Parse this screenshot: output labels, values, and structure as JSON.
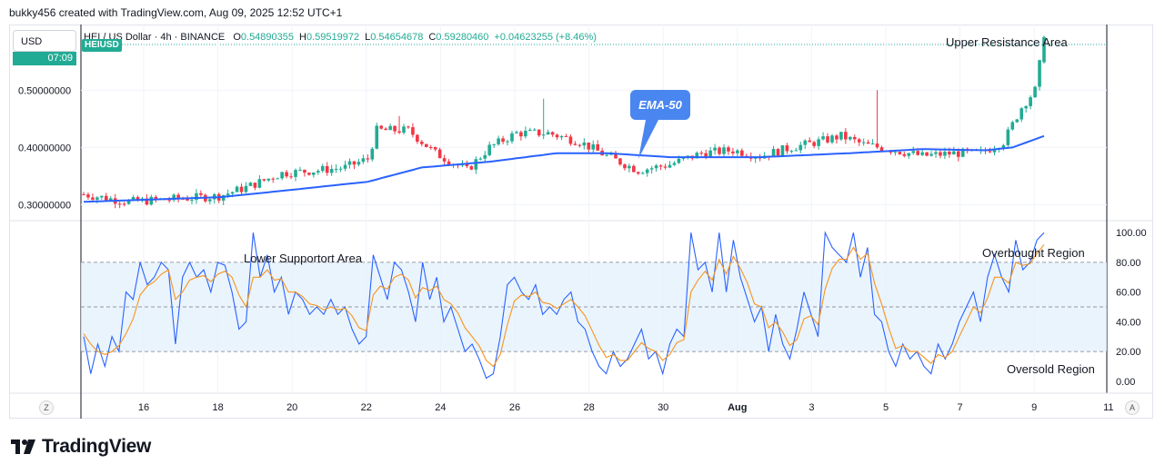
{
  "header": {
    "credit": "bukky456 created with TradingView.com, Aug 09, 2025 12:52 UTC+1",
    "currency": "USD",
    "symbol_badge": "HEIUSD",
    "time_badge": "07:09",
    "symbol_line": "HEI / US Dollar · 4h · BINANCE",
    "ohlc": [
      {
        "k": "O",
        "v": "0.54890355"
      },
      {
        "k": "H",
        "v": "0.59519972"
      },
      {
        "k": "L",
        "v": "0.54654678"
      },
      {
        "k": "C",
        "v": "0.59280460"
      },
      {
        "k": "",
        "v": "+0.04623255 (+8.46%)"
      }
    ]
  },
  "footer": {
    "logo": "TradingView",
    "left_button": "Z",
    "right_button": "A"
  },
  "colors": {
    "up": "#22ab94",
    "down": "#f23645",
    "ema": "#2962ff",
    "rsi": "#2962ff",
    "rsi_ma": "#f7941d",
    "band": "#e3f0fc"
  },
  "chart_data": [
    {
      "type": "candlestick",
      "title": "HEI / US Dollar · 4h · BINANCE",
      "ylim": [
        0.28,
        0.61
      ],
      "ytick_labels": [
        "0.30000000",
        "0.40000000",
        "0.50000000"
      ],
      "x": [
        "16",
        "18",
        "20",
        "22",
        "24",
        "26",
        "28",
        "30",
        "Aug",
        "3",
        "5",
        "7",
        "9",
        "11"
      ],
      "ohlc_approx": {
        "open": 0.5489,
        "high": 0.5952,
        "low": 0.5465,
        "close": 0.5928,
        "anchor_closes": [
          [
            0,
            0.318
          ],
          [
            10,
            0.305
          ],
          [
            20,
            0.31
          ],
          [
            30,
            0.315
          ],
          [
            36,
            0.33
          ],
          [
            44,
            0.355
          ],
          [
            52,
            0.36
          ],
          [
            58,
            0.365
          ],
          [
            63,
            0.38
          ],
          [
            65,
            0.43
          ],
          [
            72,
            0.43
          ],
          [
            78,
            0.39
          ],
          [
            85,
            0.36
          ],
          [
            90,
            0.4
          ],
          [
            96,
            0.425
          ],
          [
            103,
            0.425
          ],
          [
            110,
            0.41
          ],
          [
            116,
            0.385
          ],
          [
            123,
            0.36
          ],
          [
            130,
            0.37
          ],
          [
            137,
            0.39
          ],
          [
            144,
            0.395
          ],
          [
            150,
            0.385
          ],
          [
            157,
            0.4
          ],
          [
            163,
            0.41
          ],
          [
            168,
            0.42
          ],
          [
            173,
            0.405
          ],
          [
            180,
            0.395
          ],
          [
            186,
            0.385
          ],
          [
            193,
            0.39
          ],
          [
            199,
            0.39
          ],
          [
            204,
            0.41
          ],
          [
            208,
            0.47
          ],
          [
            211,
            0.5
          ],
          [
            212,
            0.545
          ],
          [
            213,
            0.593
          ]
        ]
      },
      "ema_50": {
        "label": "EMA-50",
        "anchors": [
          [
            0,
            0.305
          ],
          [
            30,
            0.313
          ],
          [
            45,
            0.325
          ],
          [
            63,
            0.34
          ],
          [
            75,
            0.365
          ],
          [
            90,
            0.375
          ],
          [
            105,
            0.39
          ],
          [
            116,
            0.39
          ],
          [
            130,
            0.383
          ],
          [
            150,
            0.383
          ],
          [
            170,
            0.39
          ],
          [
            186,
            0.397
          ],
          [
            200,
            0.395
          ],
          [
            206,
            0.4
          ],
          [
            213,
            0.42
          ]
        ]
      },
      "annotations": [
        {
          "text": "Upper Resistance Area"
        },
        {
          "text": "EMA-50"
        }
      ]
    },
    {
      "type": "line",
      "ylim": [
        -5,
        105
      ],
      "ytick_labels": [
        "0.00",
        "20.00",
        "40.00",
        "60.00",
        "80.00",
        "100.00"
      ],
      "band": [
        20,
        80
      ],
      "series": [
        {
          "values": [
            30,
            5,
            25,
            10,
            30,
            20,
            60,
            55,
            80,
            65,
            70,
            80,
            75,
            25,
            70,
            80,
            70,
            75,
            60,
            80,
            78,
            60,
            35,
            40,
            100,
            70,
            85,
            60,
            70,
            45,
            60,
            55,
            45,
            50,
            45,
            55,
            45,
            50,
            35,
            25,
            30,
            85,
            70,
            55,
            80,
            75,
            60,
            40,
            80,
            55,
            70,
            40,
            50,
            35,
            20,
            25,
            15,
            2,
            5,
            30,
            65,
            70,
            60,
            55,
            65,
            45,
            50,
            45,
            55,
            60,
            40,
            35,
            20,
            10,
            5,
            20,
            10,
            15,
            25,
            35,
            15,
            20,
            5,
            25,
            35,
            30,
            100,
            75,
            80,
            60,
            100,
            60,
            95,
            70,
            55,
            40,
            50,
            20,
            45,
            25,
            15,
            35,
            60,
            45,
            30,
            100,
            90,
            85,
            80,
            100,
            70,
            90,
            45,
            40,
            20,
            10,
            25,
            15,
            20,
            10,
            5,
            25,
            15,
            25,
            40,
            50,
            60,
            40,
            70,
            85,
            70,
            60,
            95,
            75,
            80,
            95,
            100
          ]
        },
        {
          "values": [
            32,
            25,
            20,
            18,
            20,
            24,
            32,
            42,
            58,
            64,
            67,
            72,
            75,
            55,
            60,
            68,
            70,
            71,
            67,
            72,
            74,
            70,
            58,
            50,
            70,
            70,
            75,
            68,
            69,
            60,
            60,
            57,
            52,
            51,
            48,
            50,
            48,
            49,
            44,
            36,
            34,
            58,
            64,
            62,
            70,
            72,
            68,
            56,
            63,
            61,
            64,
            55,
            52,
            46,
            36,
            30,
            24,
            14,
            10,
            18,
            38,
            54,
            58,
            57,
            60,
            53,
            52,
            49,
            52,
            55,
            50,
            44,
            34,
            24,
            16,
            18,
            14,
            14,
            20,
            26,
            22,
            20,
            14,
            18,
            26,
            28,
            60,
            68,
            74,
            68,
            82,
            72,
            84,
            76,
            66,
            52,
            50,
            36,
            40,
            33,
            24,
            28,
            42,
            44,
            38,
            62,
            76,
            82,
            82,
            90,
            82,
            86,
            66,
            52,
            36,
            22,
            24,
            20,
            20,
            16,
            12,
            18,
            16,
            20,
            30,
            40,
            50,
            46,
            56,
            70,
            70,
            66,
            80,
            78,
            79,
            86,
            92
          ]
        }
      ],
      "annotations": [
        {
          "text": "Lower Supportort Area"
        },
        {
          "text": "Overbought Region"
        },
        {
          "text": "Oversold Region"
        }
      ]
    }
  ]
}
